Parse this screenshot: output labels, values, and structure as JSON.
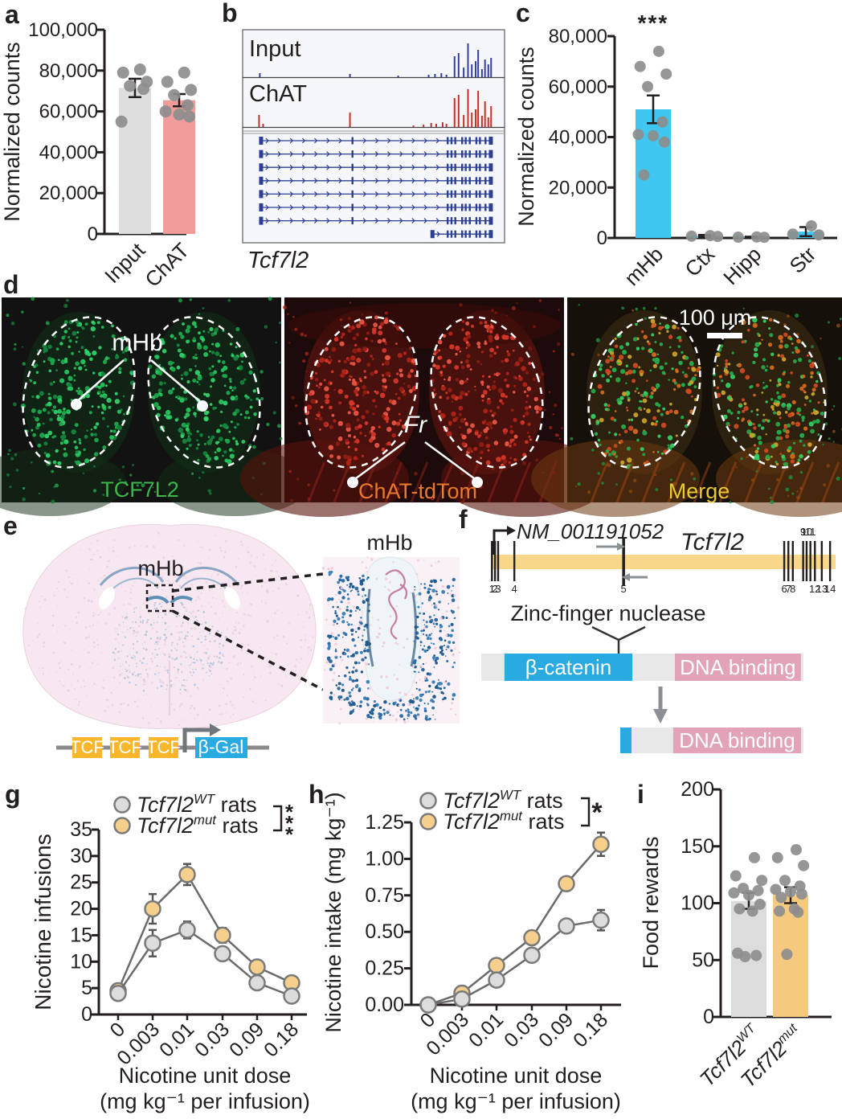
{
  "panel_labels": {
    "a": "a",
    "b": "b",
    "c": "c",
    "d": "d",
    "e": "e",
    "f": "f",
    "g": "g",
    "h": "h",
    "i": "i"
  },
  "chart_data": [
    {
      "id": "a",
      "type": "bar",
      "ylabel": "Normalized counts",
      "categories": [
        "Input",
        "ChAT"
      ],
      "values": [
        71500,
        65500
      ],
      "errors": [
        4500,
        3000
      ],
      "bar_colors": [
        "#dedede",
        "#f19b9b"
      ],
      "dots": [
        [
          80500,
          79000,
          74500,
          72500,
          71000,
          55000
        ],
        [
          79000,
          74500,
          70500,
          68000,
          63000,
          60000,
          58500,
          57500
        ]
      ],
      "ylim": [
        0,
        100000
      ],
      "ytick_step": 20000
    },
    {
      "id": "c",
      "type": "bar",
      "ylabel": "Normalized counts",
      "categories": [
        "mHb",
        "Ctx",
        "Hipp",
        "Str"
      ],
      "values": [
        51000,
        800,
        300,
        2500
      ],
      "errors": [
        5500,
        400,
        200,
        1800
      ],
      "bar_colors": [
        "#3fc7f2",
        "#3fc7f2",
        "#3fc7f2",
        "#3fc7f2"
      ],
      "dots": [
        [
          74000,
          68000,
          65000,
          60000,
          46000,
          41000,
          40500,
          38000,
          25000
        ],
        [
          900,
          700,
          600
        ],
        [
          400,
          300,
          250
        ],
        [
          4800,
          1500,
          1200
        ]
      ],
      "ylim": [
        0,
        80000
      ],
      "ytick_step": 20000,
      "sig": "***",
      "sig_index": 0
    },
    {
      "id": "g",
      "type": "line",
      "ylabel": "Nicotine infusions",
      "xlabel": [
        "Nicotine unit dose",
        "(mg kg⁻¹ per infusion)"
      ],
      "categories": [
        "0",
        "0.003",
        "0.01",
        "0.03",
        "0.09",
        "0.18"
      ],
      "series": [
        {
          "gene": "Tcf7l2",
          "sup": "WT",
          "rest": " rats",
          "color": "#dcdcdc",
          "values": [
            4,
            13.5,
            16,
            11.5,
            6,
            3.5
          ],
          "errors": [
            0.8,
            2.5,
            1.6,
            1.2,
            0.9,
            0.8
          ]
        },
        {
          "gene": "Tcf7l2",
          "sup": "mut",
          "rest": " rats",
          "color": "#f6cf8d",
          "values": [
            4.5,
            20,
            26.5,
            15,
            9,
            6
          ],
          "errors": [
            0.9,
            2.8,
            2,
            1.4,
            1.1,
            1
          ]
        }
      ],
      "ylim": [
        0,
        35
      ],
      "ytick_step": 5,
      "sig": "***",
      "sig_stacked": true
    },
    {
      "id": "h",
      "type": "line",
      "ylabel": "Nicotine intake (mg kg⁻¹)",
      "xlabel": [
        "Nicotine unit dose",
        "(mg kg⁻¹ per infusion)"
      ],
      "categories": [
        "0",
        "0.003",
        "0.01",
        "0.03",
        "0.09",
        "0.18"
      ],
      "series": [
        {
          "gene": "Tcf7l2",
          "sup": "WT",
          "rest": " rats",
          "color": "#dcdcdc",
          "values": [
            0,
            0.04,
            0.17,
            0.34,
            0.54,
            0.58
          ],
          "errors": [
            0,
            0.01,
            0.02,
            0.03,
            0.03,
            0.07
          ]
        },
        {
          "gene": "Tcf7l2",
          "sup": "mut",
          "rest": " rats",
          "color": "#f6cf8d",
          "values": [
            0,
            0.08,
            0.27,
            0.46,
            0.83,
            1.1
          ],
          "errors": [
            0,
            0.015,
            0.025,
            0.03,
            0.04,
            0.08
          ]
        }
      ],
      "ylim": [
        0,
        1.25
      ],
      "ytick_step": 0.25,
      "ydec": 2,
      "sig": "*",
      "sig_stacked": false
    },
    {
      "id": "i",
      "type": "bar",
      "ylabel": "Food rewards",
      "categories_rich": [
        {
          "gene": "Tcf7l2",
          "sup": "WT"
        },
        {
          "gene": "Tcf7l2",
          "sup": "mut"
        }
      ],
      "values": [
        102,
        107
      ],
      "errors": [
        7,
        7
      ],
      "bar_colors": [
        "#dcdcdc",
        "#f6ca7e"
      ],
      "dots": [
        [
          140,
          124,
          120,
          113,
          111,
          109,
          107,
          99,
          95,
          93,
          56,
          54,
          53
        ],
        [
          147,
          140,
          133,
          120,
          115,
          112,
          110,
          108,
          105,
          95,
          93,
          92,
          55
        ]
      ],
      "ylim": [
        0,
        200
      ],
      "ytick_step": 50
    }
  ],
  "panel_b": {
    "gene_label": "Tcf7l2",
    "tracks": [
      {
        "label": "Input",
        "color": "#333f9e",
        "peaks": [
          [
            0.055,
            5
          ],
          [
            0.41,
            4
          ],
          [
            0.6,
            2
          ],
          [
            0.72,
            3
          ],
          [
            0.745,
            4
          ],
          [
            0.77,
            5
          ],
          [
            0.79,
            3
          ],
          [
            0.822,
            26
          ],
          [
            0.838,
            30
          ],
          [
            0.858,
            12
          ],
          [
            0.875,
            42
          ],
          [
            0.89,
            16
          ],
          [
            0.905,
            20
          ],
          [
            0.915,
            34
          ],
          [
            0.93,
            10
          ],
          [
            0.942,
            22
          ],
          [
            0.955,
            16
          ],
          [
            0.966,
            24
          ]
        ]
      },
      {
        "label": "ChAT",
        "color": "#c93128",
        "peaks": [
          [
            0.052,
            15
          ],
          [
            0.068,
            4
          ],
          [
            0.41,
            18
          ],
          [
            0.66,
            2
          ],
          [
            0.7,
            3
          ],
          [
            0.73,
            5
          ],
          [
            0.75,
            4
          ],
          [
            0.775,
            6
          ],
          [
            0.79,
            4
          ],
          [
            0.822,
            36
          ],
          [
            0.838,
            40
          ],
          [
            0.858,
            15
          ],
          [
            0.875,
            47
          ],
          [
            0.89,
            18
          ],
          [
            0.905,
            22
          ],
          [
            0.915,
            45
          ],
          [
            0.93,
            14
          ],
          [
            0.942,
            32
          ],
          [
            0.955,
            12
          ],
          [
            0.966,
            26
          ]
        ]
      }
    ],
    "isoforms": {
      "rows": 8,
      "start": 0.06,
      "short_row_start": 0.735,
      "mid_exons": [
        0.42
      ],
      "cluster": [
        0.795,
        0.81,
        0.825,
        0.852,
        0.866,
        0.882,
        0.908,
        0.922,
        0.944
      ],
      "end": 0.965,
      "color": "#2c3f94"
    }
  },
  "panel_d": {
    "scale_bar_label": "100 μm",
    "images": [
      {
        "name": "TCF7L2",
        "label_color": "#3cb54a",
        "annotation": "mHb"
      },
      {
        "name": "ChAT-tdTom",
        "label_color": "#e8792f",
        "annotation": "Fr"
      },
      {
        "name": "Merge",
        "label_color": "#e8c932"
      }
    ]
  },
  "panel_e": {
    "brain_region_label": "mHb",
    "inset_title": "mHb",
    "construct": {
      "tcf_boxes": [
        "TCF",
        "TCF",
        "TCF"
      ],
      "tcf_color": "#fbb62b",
      "reporter": "β-Gal",
      "reporter_color": "#29abe2"
    }
  },
  "panel_f": {
    "transcript": "NM_001191052",
    "gene": "Tcf7l2",
    "nuclease_label": "Zinc-finger nuclease",
    "band_color": "#f8d78a",
    "exons": [
      {
        "n": "1",
        "f": 0.003
      },
      {
        "n": "2",
        "f": 0.012
      },
      {
        "n": "3",
        "f": 0.021
      },
      {
        "n": "4",
        "f": 0.068
      },
      {
        "n": "5",
        "f": 0.385
      },
      {
        "n": "6",
        "f": 0.851
      },
      {
        "n": "7",
        "f": 0.863
      },
      {
        "n": "8",
        "f": 0.876
      },
      {
        "n": "9",
        "f": 0.906,
        "side": "above"
      },
      {
        "n": "10",
        "f": 0.916,
        "side": "above"
      },
      {
        "n": "11",
        "f": 0.927,
        "side": "above"
      },
      {
        "n": "12",
        "f": 0.94
      },
      {
        "n": "13",
        "f": 0.96
      },
      {
        "n": "14",
        "f": 0.984
      }
    ],
    "protein_full": {
      "domains": [
        {
          "label": "β-catenin",
          "color": "#29abe2",
          "f0": 0.072,
          "f1": 0.469
        },
        {
          "label": "DNA binding",
          "color": "#e2a2b7",
          "f0": 0.601,
          "f1": 0.992
        }
      ]
    },
    "protein_trunc": {
      "sliver_color": "#29abe2",
      "domains": [
        {
          "label": "DNA binding",
          "color": "#e2a2b7",
          "f0": 0.289,
          "f1": 0.987
        }
      ]
    }
  }
}
